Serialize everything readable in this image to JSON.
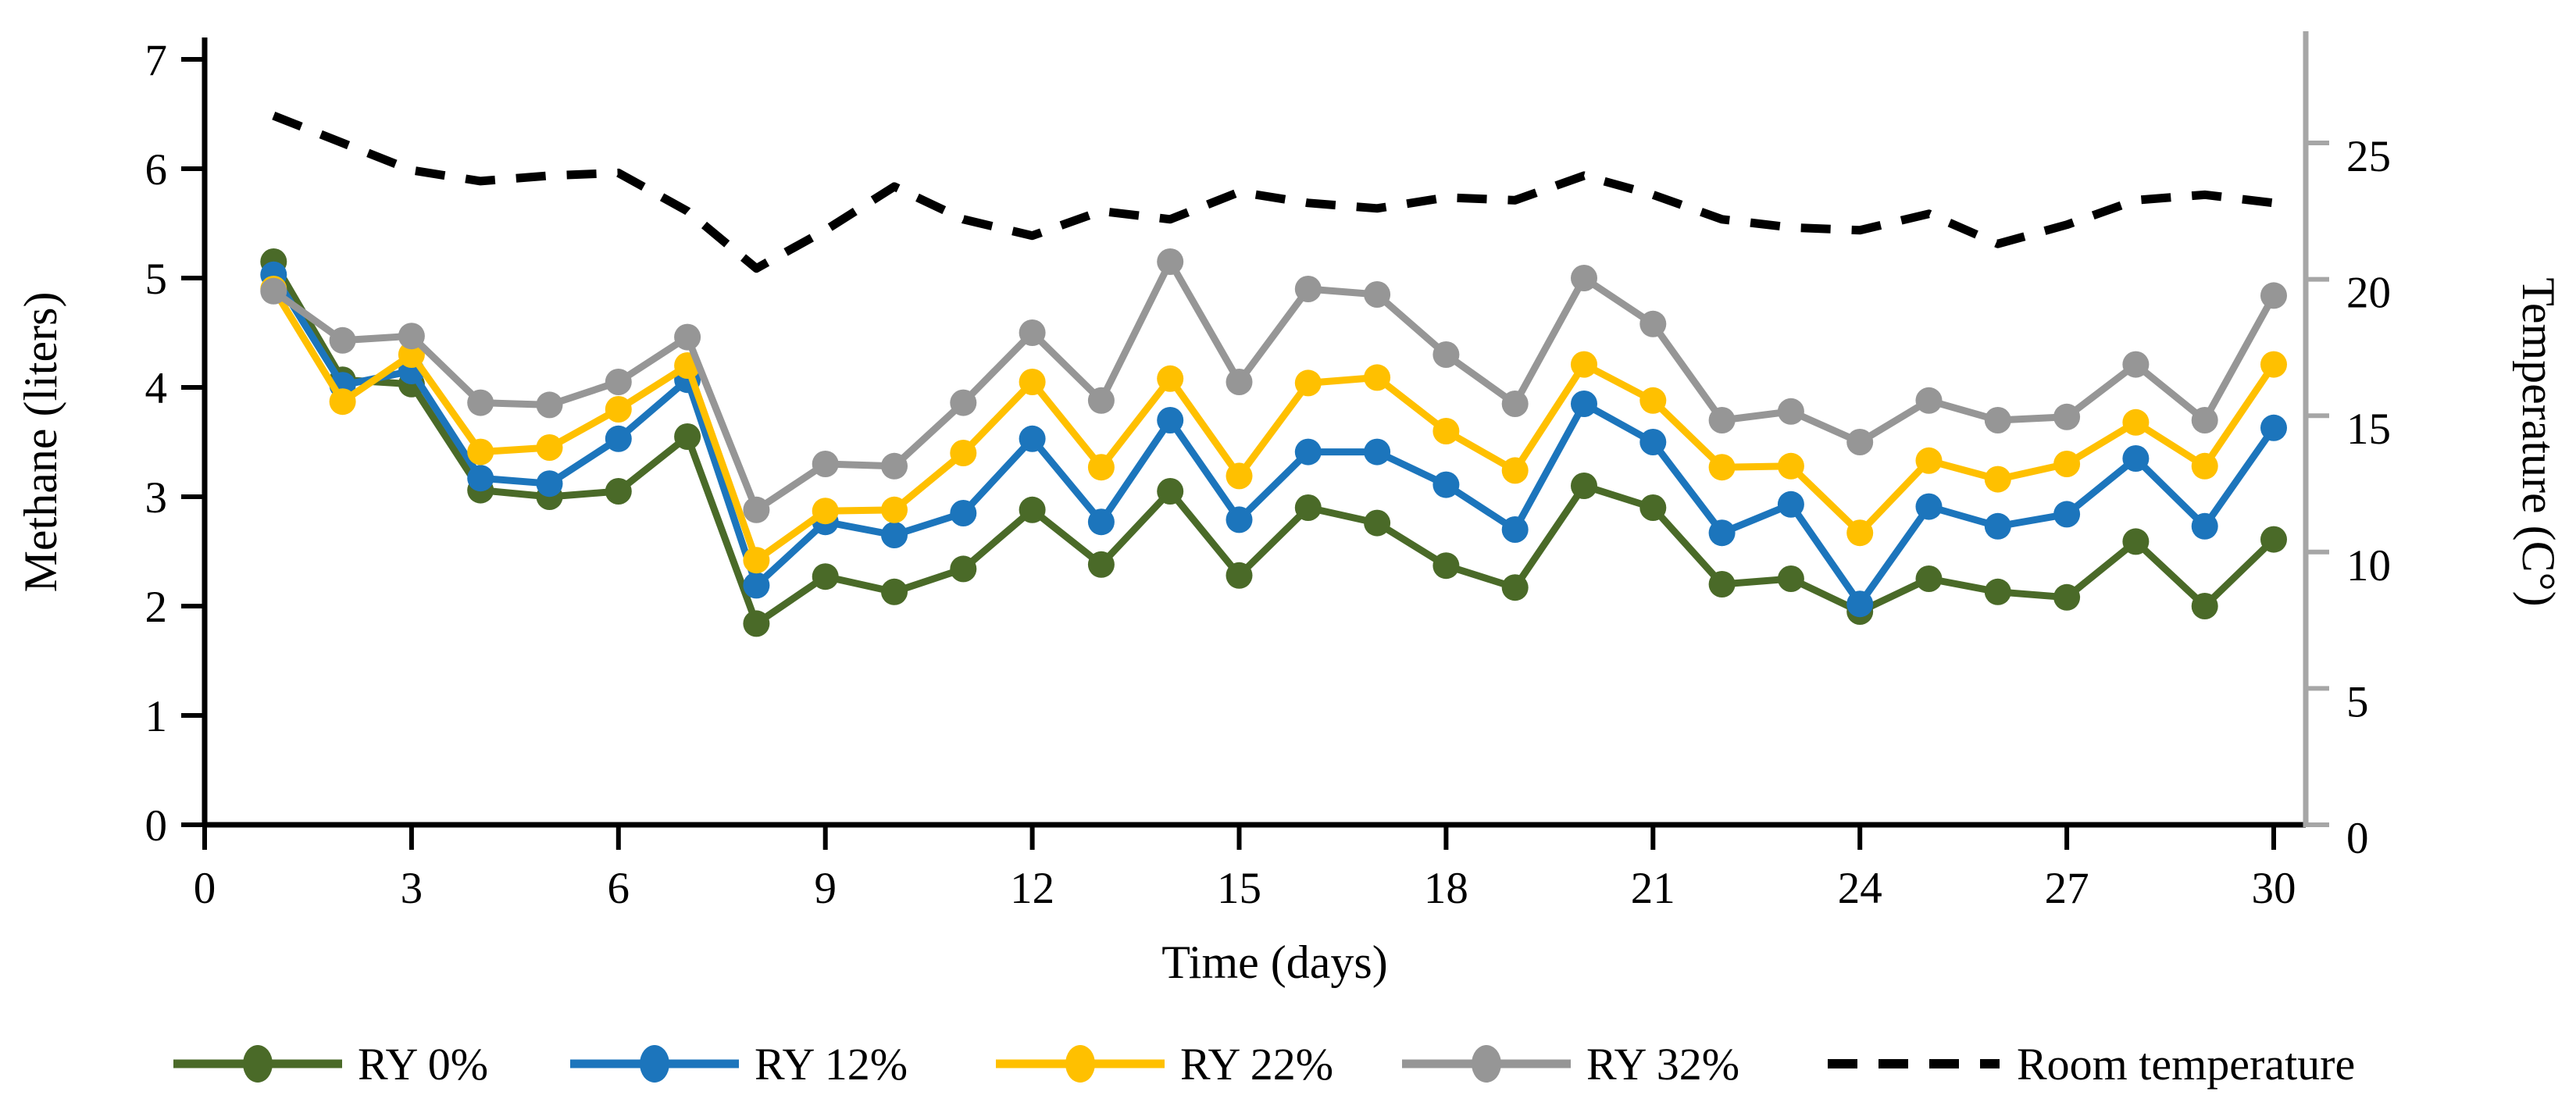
{
  "chart_data": {
    "type": "line",
    "title": "",
    "xlabel": "Time (days)",
    "ylabel_left": "Methane (liters)",
    "ylabel_right": "Temperature (C°)",
    "x": [
      1,
      2,
      3,
      4,
      5,
      6,
      7,
      8,
      9,
      10,
      11,
      12,
      13,
      14,
      15,
      16,
      17,
      18,
      19,
      20,
      21,
      22,
      23,
      24,
      25,
      26,
      27,
      28,
      29,
      30
    ],
    "x_ticks": [
      0,
      3,
      6,
      9,
      12,
      15,
      18,
      21,
      24,
      27,
      30
    ],
    "x_range": [
      0,
      30
    ],
    "y_left": {
      "min": 0,
      "max": 7,
      "ticks": [
        0,
        1,
        2,
        3,
        4,
        5,
        6,
        7
      ]
    },
    "y_right": {
      "min": 0,
      "max": 25,
      "ticks": [
        0,
        5,
        10,
        15,
        20,
        25
      ]
    },
    "grid": "off",
    "legend_position": "bottom",
    "series": [
      {
        "name": "RY 0%",
        "color": "#4A6A28",
        "marker": "circle",
        "values": [
          5.15,
          4.07,
          4.03,
          3.06,
          3.0,
          3.05,
          3.55,
          1.84,
          2.27,
          2.13,
          2.34,
          2.88,
          2.38,
          3.05,
          2.28,
          2.9,
          2.76,
          2.37,
          2.17,
          3.1,
          2.9,
          2.2,
          2.25,
          1.95,
          2.25,
          2.13,
          2.08,
          2.59,
          2.0,
          2.61
        ]
      },
      {
        "name": "RY 12%",
        "color": "#1C75BC",
        "marker": "circle",
        "values": [
          5.03,
          4.02,
          4.15,
          3.17,
          3.12,
          3.53,
          4.07,
          2.19,
          2.77,
          2.65,
          2.85,
          3.53,
          2.77,
          3.7,
          2.79,
          3.41,
          3.41,
          3.11,
          2.7,
          3.85,
          3.5,
          2.67,
          2.93,
          2.02,
          2.91,
          2.73,
          2.84,
          3.35,
          2.73,
          3.63
        ]
      },
      {
        "name": "RY 22%",
        "color": "#FFC000",
        "marker": "circle",
        "values": [
          4.9,
          3.87,
          4.3,
          3.41,
          3.45,
          3.8,
          4.2,
          2.42,
          2.87,
          2.88,
          3.4,
          4.05,
          3.27,
          4.08,
          3.19,
          4.04,
          4.09,
          3.6,
          3.24,
          4.21,
          3.88,
          3.27,
          3.28,
          2.67,
          3.33,
          3.16,
          3.3,
          3.68,
          3.28,
          4.21
        ]
      },
      {
        "name": "RY 32%",
        "color": "#969696",
        "marker": "circle",
        "values": [
          4.88,
          4.43,
          4.47,
          3.86,
          3.84,
          4.05,
          4.46,
          2.88,
          3.3,
          3.28,
          3.86,
          4.5,
          3.88,
          5.15,
          4.05,
          4.9,
          4.85,
          4.3,
          3.85,
          5.0,
          4.58,
          3.7,
          3.78,
          3.5,
          3.88,
          3.7,
          3.73,
          4.21,
          3.7,
          4.84
        ]
      }
    ],
    "temperature_series": {
      "name": "Room temperature",
      "color": "#000000",
      "style": "dashed",
      "axis": "right",
      "values": [
        26.0,
        25.0,
        24.0,
        23.6,
        23.8,
        23.9,
        22.5,
        20.4,
        21.8,
        23.4,
        22.2,
        21.6,
        22.5,
        22.2,
        23.2,
        22.8,
        22.6,
        23.0,
        22.9,
        23.8,
        23.1,
        22.2,
        21.9,
        21.8,
        22.4,
        21.3,
        22.0,
        22.9,
        23.1,
        22.8
      ]
    },
    "axis_colors": {
      "left": "#000000",
      "bottom": "#000000",
      "right": "#A6A6A6"
    }
  }
}
